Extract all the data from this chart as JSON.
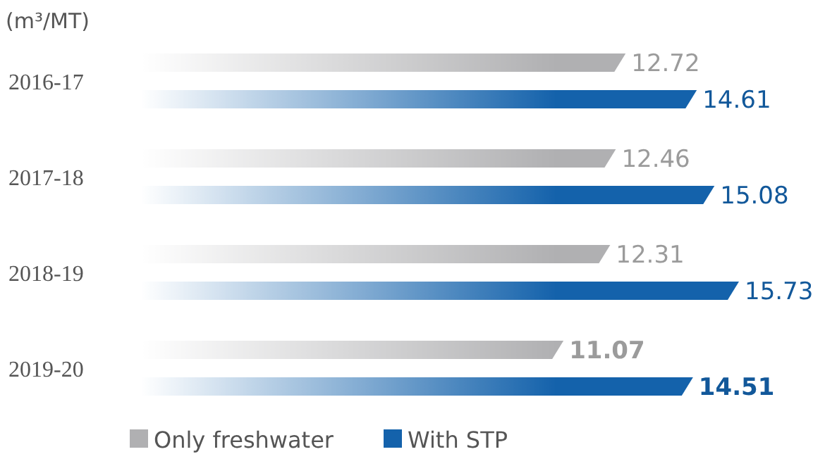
{
  "chart_data": {
    "type": "bar",
    "orientation": "horizontal",
    "ylabel": "(m³/MT)",
    "categories": [
      "2016-17",
      "2017-18",
      "2018-19",
      "2019-20"
    ],
    "series": [
      {
        "name": "Only freshwater",
        "color": "#b0b0b2",
        "values": [
          12.72,
          12.46,
          12.31,
          11.07
        ]
      },
      {
        "name": "With STP",
        "color": "#1462ab",
        "values": [
          14.61,
          15.08,
          15.73,
          14.51
        ]
      }
    ],
    "data_labels": true,
    "legend": "bottom"
  }
}
